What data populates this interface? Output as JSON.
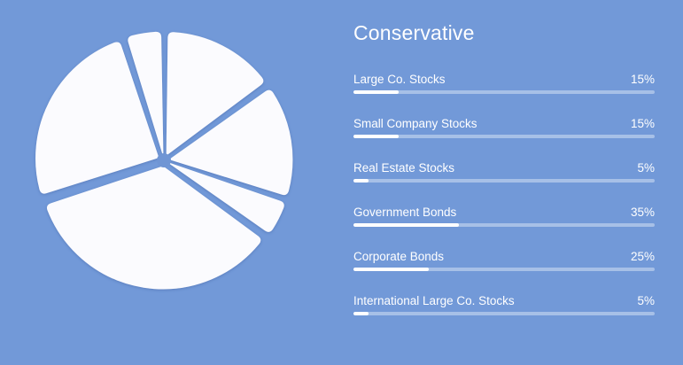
{
  "portfolio": {
    "title": "Conservative"
  },
  "colors": {
    "background": "#7299d8",
    "slice_fill": "#fbfbfe",
    "bar_track": "rgba(255,255,255,0.38)",
    "bar_fill": "#ffffff"
  },
  "allocations": [
    {
      "label": "Large Co. Stocks",
      "percent_text": "15%",
      "value": 15
    },
    {
      "label": "Small Company Stocks",
      "percent_text": "15%",
      "value": 15
    },
    {
      "label": "Real Estate Stocks",
      "percent_text": "5%",
      "value": 5
    },
    {
      "label": "Government Bonds",
      "percent_text": "35%",
      "value": 35
    },
    {
      "label": "Corporate Bonds",
      "percent_text": "25%",
      "value": 25
    },
    {
      "label": "International Large Co. Stocks",
      "percent_text": "5%",
      "value": 5
    }
  ],
  "chart_data": {
    "type": "pie",
    "title": "",
    "categories": [
      "Large Co. Stocks",
      "Small Company Stocks",
      "Real Estate Stocks",
      "Government Bonds",
      "Corporate Bonds",
      "International Large Co. Stocks"
    ],
    "values": [
      15,
      15,
      5,
      35,
      25,
      5
    ],
    "grid": false,
    "legend": "right"
  }
}
